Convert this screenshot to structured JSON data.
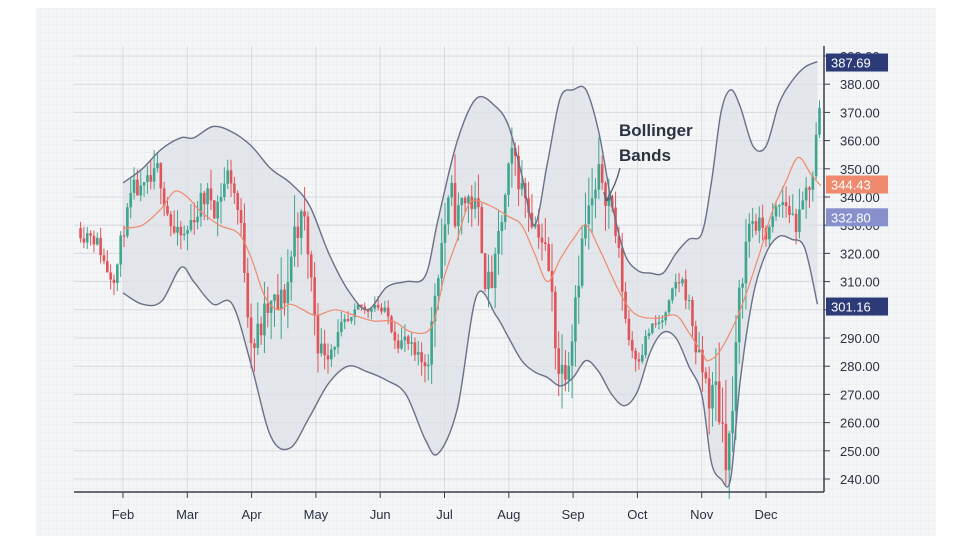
{
  "chart_data": {
    "type": "candlestick",
    "title": "",
    "xlabel": "",
    "ylabel": "",
    "x_ticks": [
      "Feb",
      "Mar",
      "Apr",
      "May",
      "Jun",
      "Jul",
      "Aug",
      "Sep",
      "Oct",
      "Nov",
      "Dec"
    ],
    "y_ticks": [
      240,
      250,
      260,
      270,
      280,
      290,
      300,
      310,
      320,
      330,
      340,
      350,
      360,
      370,
      380,
      390
    ],
    "y_tick_labels": [
      "240.00",
      "250.00",
      "260.00",
      "270.00",
      "280.00",
      "290.00",
      "300.00",
      "310.00",
      "320.00",
      "330.00",
      "340.00",
      "350.00",
      "360.00",
      "370.00",
      "380.00",
      "390.00"
    ],
    "ylim": [
      236,
      391
    ],
    "grid": true,
    "annotation": {
      "text_line1": "Bollinger",
      "text_line2": "Bands"
    },
    "price_labels": [
      {
        "text": "387.69",
        "value": 387.69,
        "color": "#2c3a78"
      },
      {
        "text": "344.43",
        "value": 344.43,
        "color": "#f08a6e"
      },
      {
        "text": "332.80",
        "value": 332.8,
        "color": "#8890cc"
      },
      {
        "text": "301.16",
        "value": 301.16,
        "color": "#2c3a78"
      }
    ],
    "colors": {
      "up": "#3fa58e",
      "down": "#e0545a",
      "middle_band": "#f08a6e",
      "band_line": "#6a7088",
      "band_fill": "#dde0e6"
    },
    "series": [
      {
        "kind": "upper_band",
        "points": [
          [
            0.0,
            345
          ],
          [
            0.3,
            350
          ],
          [
            0.6,
            357
          ],
          [
            0.9,
            361
          ],
          [
            1.1,
            361
          ],
          [
            1.4,
            365
          ],
          [
            1.7,
            363
          ],
          [
            2.0,
            358
          ],
          [
            2.3,
            350
          ],
          [
            2.6,
            345
          ],
          [
            2.9,
            337
          ],
          [
            3.2,
            320
          ],
          [
            3.5,
            307
          ],
          [
            3.8,
            300
          ],
          [
            4.1,
            308
          ],
          [
            4.4,
            310
          ],
          [
            4.7,
            312
          ],
          [
            4.9,
            332
          ],
          [
            5.2,
            360
          ],
          [
            5.5,
            375
          ],
          [
            5.8,
            372
          ],
          [
            6.0,
            365
          ],
          [
            6.2,
            348
          ],
          [
            6.4,
            330
          ],
          [
            6.6,
            352
          ],
          [
            6.8,
            375
          ],
          [
            7.0,
            378
          ],
          [
            7.2,
            378
          ],
          [
            7.4,
            363
          ],
          [
            7.6,
            338
          ],
          [
            7.8,
            320
          ],
          [
            8.0,
            314
          ],
          [
            8.2,
            313
          ],
          [
            8.4,
            313
          ],
          [
            8.6,
            320
          ],
          [
            8.8,
            325
          ],
          [
            9.0,
            327
          ],
          [
            9.15,
            345
          ],
          [
            9.3,
            370
          ],
          [
            9.45,
            378
          ],
          [
            9.6,
            372
          ],
          [
            9.8,
            358
          ],
          [
            10.0,
            358
          ],
          [
            10.2,
            373
          ],
          [
            10.4,
            381
          ],
          [
            10.6,
            386
          ],
          [
            10.8,
            388
          ]
        ]
      },
      {
        "kind": "lower_band",
        "points": [
          [
            0.0,
            306
          ],
          [
            0.3,
            302
          ],
          [
            0.6,
            303
          ],
          [
            0.9,
            315
          ],
          [
            1.1,
            310
          ],
          [
            1.4,
            302
          ],
          [
            1.7,
            302
          ],
          [
            2.0,
            280
          ],
          [
            2.3,
            255
          ],
          [
            2.6,
            251
          ],
          [
            2.9,
            262
          ],
          [
            3.2,
            274
          ],
          [
            3.5,
            280
          ],
          [
            3.8,
            278
          ],
          [
            4.1,
            275
          ],
          [
            4.4,
            270
          ],
          [
            4.7,
            254
          ],
          [
            4.9,
            249
          ],
          [
            5.2,
            265
          ],
          [
            5.5,
            305
          ],
          [
            5.8,
            298
          ],
          [
            6.0,
            290
          ],
          [
            6.2,
            282
          ],
          [
            6.4,
            278
          ],
          [
            6.6,
            276
          ],
          [
            6.8,
            273
          ],
          [
            7.0,
            276
          ],
          [
            7.2,
            282
          ],
          [
            7.4,
            278
          ],
          [
            7.6,
            270
          ],
          [
            7.8,
            266
          ],
          [
            8.0,
            271
          ],
          [
            8.2,
            285
          ],
          [
            8.4,
            292
          ],
          [
            8.6,
            290
          ],
          [
            8.8,
            280
          ],
          [
            9.0,
            270
          ],
          [
            9.15,
            246
          ],
          [
            9.3,
            240
          ],
          [
            9.45,
            240
          ],
          [
            9.6,
            275
          ],
          [
            9.8,
            305
          ],
          [
            10.0,
            320
          ],
          [
            10.2,
            326
          ],
          [
            10.4,
            325
          ],
          [
            10.6,
            322
          ],
          [
            10.8,
            302
          ]
        ]
      },
      {
        "kind": "middle_band",
        "points": [
          [
            0.0,
            329
          ],
          [
            0.3,
            330
          ],
          [
            0.6,
            336
          ],
          [
            0.8,
            342
          ],
          [
            1.0,
            340
          ],
          [
            1.2,
            335
          ],
          [
            1.5,
            330
          ],
          [
            1.8,
            327
          ],
          [
            2.0,
            318
          ],
          [
            2.2,
            305
          ],
          [
            2.4,
            300
          ],
          [
            2.6,
            302
          ],
          [
            2.8,
            300
          ],
          [
            3.0,
            298
          ],
          [
            3.3,
            300
          ],
          [
            3.6,
            298
          ],
          [
            3.9,
            296
          ],
          [
            4.2,
            296
          ],
          [
            4.5,
            292
          ],
          [
            4.8,
            294
          ],
          [
            5.0,
            312
          ],
          [
            5.2,
            325
          ],
          [
            5.4,
            338
          ],
          [
            5.7,
            337
          ],
          [
            6.0,
            333
          ],
          [
            6.2,
            330
          ],
          [
            6.4,
            320
          ],
          [
            6.6,
            310
          ],
          [
            6.8,
            318
          ],
          [
            7.0,
            325
          ],
          [
            7.2,
            330
          ],
          [
            7.4,
            322
          ],
          [
            7.6,
            312
          ],
          [
            7.8,
            303
          ],
          [
            8.0,
            298
          ],
          [
            8.3,
            297
          ],
          [
            8.6,
            298
          ],
          [
            8.8,
            292
          ],
          [
            9.0,
            285
          ],
          [
            9.1,
            282
          ],
          [
            9.3,
            286
          ],
          [
            9.6,
            300
          ],
          [
            9.9,
            320
          ],
          [
            10.1,
            335
          ],
          [
            10.3,
            345
          ],
          [
            10.5,
            354
          ],
          [
            10.7,
            348
          ],
          [
            10.85,
            344
          ]
        ]
      }
    ]
  }
}
